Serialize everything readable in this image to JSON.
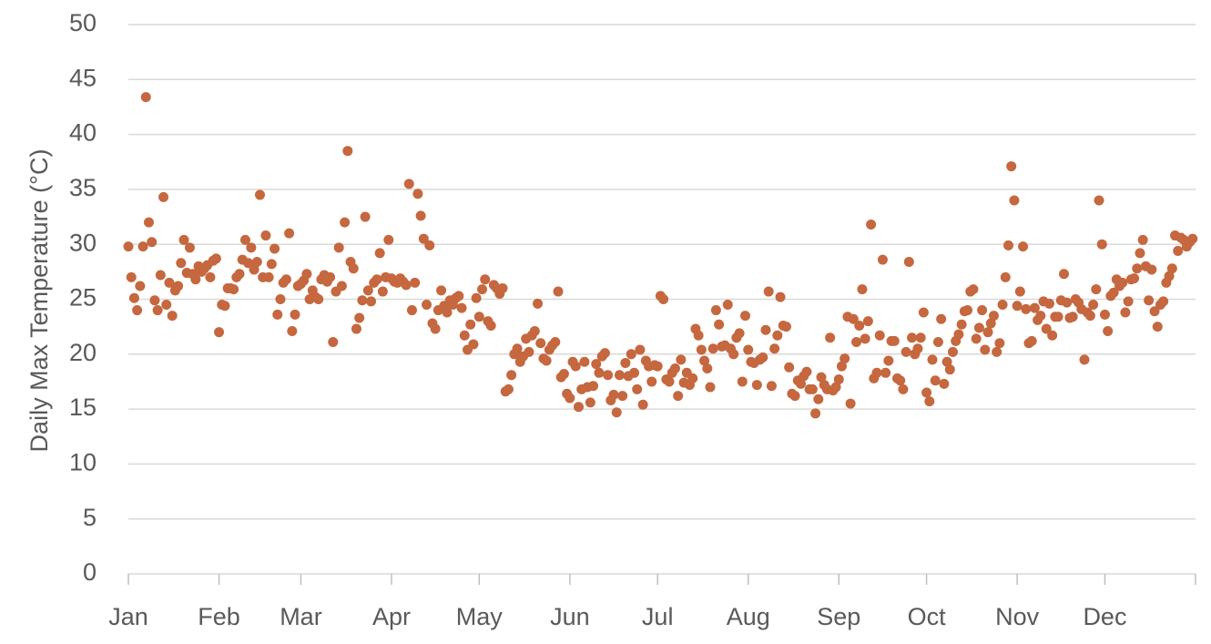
{
  "chart_data": {
    "type": "scatter",
    "y_label": "Daily Max Temperature (°C)",
    "color": "#c5673f",
    "grid": true,
    "xlim": [
      0,
      365
    ],
    "ylim": [
      0,
      50
    ],
    "yticks": [
      0,
      5,
      10,
      15,
      20,
      25,
      30,
      35,
      40,
      45,
      50
    ],
    "xticks": [
      {
        "value": 0,
        "label": "Jan"
      },
      {
        "value": 31,
        "label": "Feb"
      },
      {
        "value": 59,
        "label": "Mar"
      },
      {
        "value": 90,
        "label": "Apr"
      },
      {
        "value": 120,
        "label": "May"
      },
      {
        "value": 151,
        "label": "Jun"
      },
      {
        "value": 181,
        "label": "Jul"
      },
      {
        "value": 212,
        "label": "Aug"
      },
      {
        "value": 243,
        "label": "Sep"
      },
      {
        "value": 273,
        "label": "Oct"
      },
      {
        "value": 304,
        "label": "Nov"
      },
      {
        "value": 334,
        "label": "Dec"
      }
    ],
    "x": [
      0,
      1,
      2,
      3,
      4,
      5,
      6,
      7,
      8,
      9,
      10,
      11,
      12,
      13,
      14,
      15,
      16,
      17,
      18,
      19,
      20,
      21,
      22,
      23,
      24,
      25,
      26,
      27,
      28,
      29,
      30,
      31,
      32,
      33,
      34,
      35,
      36,
      37,
      38,
      39,
      40,
      41,
      42,
      43,
      44,
      45,
      46,
      47,
      48,
      49,
      50,
      51,
      52,
      53,
      54,
      55,
      56,
      57,
      58,
      59,
      60,
      61,
      62,
      63,
      64,
      65,
      66,
      67,
      68,
      69,
      70,
      71,
      72,
      73,
      74,
      75,
      76,
      77,
      78,
      79,
      80,
      81,
      82,
      83,
      84,
      85,
      86,
      87,
      88,
      89,
      90,
      91,
      92,
      93,
      94,
      95,
      96,
      97,
      98,
      99,
      100,
      101,
      102,
      103,
      104,
      105,
      106,
      107,
      108,
      109,
      110,
      111,
      112,
      113,
      114,
      115,
      116,
      117,
      118,
      119,
      120,
      121,
      122,
      123,
      124,
      125,
      126,
      127,
      128,
      129,
      130,
      131,
      132,
      133,
      134,
      135,
      136,
      137,
      138,
      139,
      140,
      141,
      142,
      143,
      144,
      145,
      146,
      147,
      148,
      149,
      150,
      151,
      152,
      153,
      154,
      155,
      156,
      157,
      158,
      159,
      160,
      161,
      162,
      163,
      164,
      165,
      166,
      167,
      168,
      169,
      170,
      171,
      172,
      173,
      174,
      175,
      176,
      177,
      178,
      179,
      180,
      181,
      182,
      183,
      184,
      185,
      186,
      187,
      188,
      189,
      190,
      191,
      192,
      193,
      194,
      195,
      196,
      197,
      198,
      199,
      200,
      201,
      202,
      203,
      204,
      205,
      206,
      207,
      208,
      209,
      210,
      211,
      212,
      213,
      214,
      215,
      216,
      217,
      218,
      219,
      220,
      221,
      222,
      223,
      224,
      225,
      226,
      227,
      228,
      229,
      230,
      231,
      232,
      233,
      234,
      235,
      236,
      237,
      238,
      239,
      240,
      241,
      242,
      243,
      244,
      245,
      246,
      247,
      248,
      249,
      250,
      251,
      252,
      253,
      254,
      255,
      256,
      257,
      258,
      259,
      260,
      261,
      262,
      263,
      264,
      265,
      266,
      267,
      268,
      269,
      270,
      271,
      272,
      273,
      274,
      275,
      276,
      277,
      278,
      279,
      280,
      281,
      282,
      283,
      284,
      285,
      286,
      287,
      288,
      289,
      290,
      291,
      292,
      293,
      294,
      295,
      296,
      297,
      298,
      299,
      300,
      301,
      302,
      303,
      304,
      305,
      306,
      307,
      308,
      309,
      310,
      311,
      312,
      313,
      314,
      315,
      316,
      317,
      318,
      319,
      320,
      321,
      322,
      323,
      324,
      325,
      326,
      327,
      328,
      329,
      330,
      331,
      332,
      333,
      334,
      335,
      336,
      337,
      338,
      339,
      340,
      341,
      342,
      343,
      344,
      345,
      346,
      347,
      348,
      349,
      350,
      351,
      352,
      353,
      354,
      355,
      356,
      357,
      358,
      359,
      360,
      361,
      362,
      363,
      364
    ],
    "values": [
      29.8,
      27,
      25.1,
      24,
      26.2,
      29.8,
      43.4,
      32,
      30.2,
      24.9,
      24,
      27.2,
      34.3,
      24.5,
      26.5,
      23.5,
      25.8,
      26.2,
      28.3,
      30.4,
      27.4,
      29.7,
      27.3,
      26.8,
      28,
      27.5,
      27.8,
      28.1,
      27,
      28.5,
      28.7,
      22,
      24.5,
      24.4,
      26,
      26,
      25.9,
      27,
      27.3,
      28.6,
      30.4,
      28.3,
      29.7,
      27.7,
      28.4,
      34.5,
      27,
      30.8,
      27,
      28.2,
      29.6,
      23.6,
      25,
      26.5,
      26.8,
      31,
      22.1,
      23.6,
      26.2,
      26.4,
      26.7,
      27.3,
      25,
      25.8,
      25.2,
      25,
      26.8,
      27.2,
      26.6,
      27,
      21.1,
      25.7,
      29.7,
      26.2,
      32,
      38.5,
      28.4,
      27.8,
      22.3,
      23.3,
      24.9,
      32.5,
      25.8,
      24.8,
      26.5,
      26.8,
      29.2,
      25.7,
      27,
      30.4,
      26.9,
      26.6,
      26.5,
      26.9,
      26.6,
      26.3,
      35.5,
      24,
      26.5,
      34.6,
      32.6,
      30.5,
      24.5,
      29.9,
      22.8,
      22.3,
      24,
      25.8,
      24.4,
      23.8,
      24.9,
      24.5,
      25.1,
      25.3,
      24.2,
      21.7,
      20.4,
      22.7,
      20.9,
      25.1,
      23.4,
      25.9,
      26.8,
      23,
      22.6,
      26.3,
      26,
      25.5,
      26,
      16.6,
      16.8,
      18.1,
      20,
      20.5,
      19.3,
      19.8,
      21.4,
      20.2,
      21.7,
      22.1,
      24.6,
      21,
      19.6,
      19.4,
      20.4,
      20.8,
      21.1,
      25.7,
      17.9,
      18.2,
      16.4,
      16,
      19.3,
      18.9,
      15.2,
      16.8,
      19.3,
      17,
      15.6,
      17.1,
      19.1,
      18.3,
      19.8,
      20.1,
      18.1,
      15.8,
      16.3,
      14.7,
      18.1,
      16.2,
      19.2,
      18,
      20,
      18.3,
      16.8,
      20.4,
      15.4,
      19.4,
      18.9,
      17.5,
      19,
      18.9,
      25.3,
      25,
      17.7,
      17.5,
      18.3,
      18.7,
      16.2,
      19.5,
      17.4,
      18.3,
      17.2,
      17.8,
      22.3,
      21.7,
      20.4,
      19.4,
      18.7,
      17,
      20.5,
      24,
      22.7,
      20.7,
      20.8,
      24.5,
      20.5,
      20,
      21.5,
      21.9,
      17.5,
      23.5,
      20.4,
      19.3,
      19.2,
      17.2,
      19.5,
      19.7,
      22.2,
      25.7,
      17.1,
      20.5,
      21.7,
      25.2,
      22.6,
      22.5,
      18.8,
      16.4,
      16.2,
      17.6,
      17.3,
      18,
      18.4,
      16.8,
      16.8,
      14.6,
      15.9,
      17.9,
      17.2,
      16.8,
      21.5,
      16.7,
      17,
      17.7,
      18.9,
      19.6,
      23.4,
      15.5,
      23.2,
      21.1,
      22.6,
      25.9,
      21.4,
      23,
      31.8,
      17.8,
      18.3,
      21.7,
      28.6,
      18.3,
      19.4,
      21.2,
      21.2,
      17.8,
      17.6,
      16.8,
      20.2,
      28.4,
      21.5,
      20,
      20.5,
      21.5,
      23.8,
      16.5,
      15.7,
      19.5,
      17.6,
      21.1,
      23.2,
      17.3,
      19.3,
      18.6,
      20.2,
      21.2,
      21.8,
      22.7,
      23.9,
      24,
      25.7,
      25.9,
      21.4,
      22.4,
      24,
      20.4,
      22,
      22.8,
      23.5,
      20.2,
      21,
      24.5,
      27,
      29.9,
      37.1,
      34,
      24.4,
      25.7,
      29.8,
      24.1,
      21,
      21.2,
      24.2,
      23.1,
      23.5,
      24.8,
      22.3,
      24.6,
      21.7,
      23.4,
      23.4,
      24.9,
      27.3,
      24.7,
      23.3,
      23.4,
      25,
      24.7,
      24.1,
      19.5,
      23.8,
      23.5,
      24.5,
      25.9,
      34,
      30,
      23.6,
      22.1,
      25.3,
      25.6,
      26.8,
      26.2,
      26.5,
      23.8,
      24.8,
      26.8,
      26.9,
      27.8,
      29.2,
      30.4,
      28,
      24.9,
      27.7,
      23.9,
      22.5,
      24.5,
      24.8,
      26.5,
      27.1,
      27.8,
      30.8,
      29.4,
      30.6,
      30.4,
      29.8,
      30.2,
      30.5
    ]
  }
}
